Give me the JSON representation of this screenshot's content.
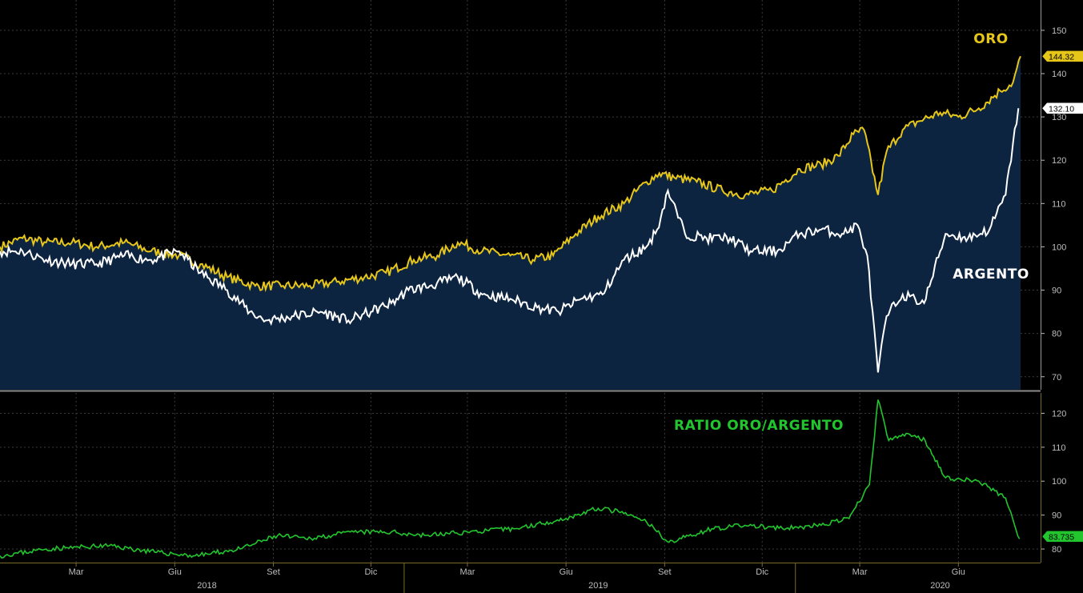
{
  "chart_data": [
    {
      "type": "area",
      "panel": "top",
      "ylim": [
        67,
        157
      ],
      "yticks": [
        70,
        80,
        90,
        100,
        110,
        120,
        130,
        140,
        150
      ],
      "grid": true,
      "x_range": [
        "2017-12-20",
        "2020-07-29"
      ],
      "series": [
        {
          "name": "ORO",
          "color": "#e6c619",
          "last_value_label": "144.32",
          "points": [
            [
              "2017-12-20",
              100
            ],
            [
              "2018-01-10",
              102
            ],
            [
              "2018-02-01",
              101
            ],
            [
              "2018-02-25",
              101
            ],
            [
              "2018-03-20",
              100
            ],
            [
              "2018-04-15",
              101
            ],
            [
              "2018-05-10",
              99
            ],
            [
              "2018-06-05",
              98
            ],
            [
              "2018-06-25",
              96
            ],
            [
              "2018-07-20",
              93
            ],
            [
              "2018-08-15",
              91
            ],
            [
              "2018-09-10",
              91
            ],
            [
              "2018-10-05",
              91
            ],
            [
              "2018-11-01",
              92
            ],
            [
              "2018-11-25",
              93
            ],
            [
              "2018-12-15",
              94
            ],
            [
              "2019-01-10",
              97
            ],
            [
              "2019-02-01",
              98
            ],
            [
              "2019-02-20",
              101
            ],
            [
              "2019-03-15",
              99
            ],
            [
              "2019-04-10",
              98
            ],
            [
              "2019-05-01",
              97
            ],
            [
              "2019-05-20",
              98
            ],
            [
              "2019-06-10",
              103
            ],
            [
              "2019-07-01",
              107
            ],
            [
              "2019-07-25",
              110
            ],
            [
              "2019-08-15",
              115
            ],
            [
              "2019-08-27",
              117
            ],
            [
              "2019-09-10",
              116
            ],
            [
              "2019-10-01",
              115
            ],
            [
              "2019-10-25",
              113
            ],
            [
              "2019-11-15",
              112
            ],
            [
              "2019-12-10",
              113
            ],
            [
              "2020-01-05",
              118
            ],
            [
              "2020-01-25",
              119
            ],
            [
              "2020-02-10",
              121
            ],
            [
              "2020-02-24",
              126
            ],
            [
              "2020-03-05",
              127
            ],
            [
              "2020-03-18",
              112
            ],
            [
              "2020-03-26",
              122
            ],
            [
              "2020-04-10",
              127
            ],
            [
              "2020-04-25",
              129
            ],
            [
              "2020-05-15",
              131
            ],
            [
              "2020-06-01",
              130
            ],
            [
              "2020-06-20",
              132
            ],
            [
              "2020-07-10",
              136
            ],
            [
              "2020-07-22",
              138
            ],
            [
              "2020-07-29",
              144
            ]
          ]
        },
        {
          "name": "ARGENTO",
          "color": "#ffffff",
          "last_value_label": "132.10",
          "points": [
            [
              "2017-12-20",
              99
            ],
            [
              "2018-01-10",
              99
            ],
            [
              "2018-02-01",
              97
            ],
            [
              "2018-02-25",
              96
            ],
            [
              "2018-03-20",
              96
            ],
            [
              "2018-04-15",
              98
            ],
            [
              "2018-05-10",
              97
            ],
            [
              "2018-06-05",
              99
            ],
            [
              "2018-06-25",
              94
            ],
            [
              "2018-07-20",
              90
            ],
            [
              "2018-08-10",
              85
            ],
            [
              "2018-08-25",
              83
            ],
            [
              "2018-09-20",
              84
            ],
            [
              "2018-10-15",
              85
            ],
            [
              "2018-11-10",
              83
            ],
            [
              "2018-12-01",
              85
            ],
            [
              "2018-12-20",
              87
            ],
            [
              "2019-01-05",
              90
            ],
            [
              "2019-01-25",
              91
            ],
            [
              "2019-02-20",
              93
            ],
            [
              "2019-03-15",
              89
            ],
            [
              "2019-04-10",
              88
            ],
            [
              "2019-05-05",
              86
            ],
            [
              "2019-05-25",
              85
            ],
            [
              "2019-06-15",
              88
            ],
            [
              "2019-07-05",
              89
            ],
            [
              "2019-07-25",
              97
            ],
            [
              "2019-08-15",
              100
            ],
            [
              "2019-08-25",
              104
            ],
            [
              "2019-09-04",
              113
            ],
            [
              "2019-09-20",
              103
            ],
            [
              "2019-10-10",
              102
            ],
            [
              "2019-11-01",
              102
            ],
            [
              "2019-11-20",
              99
            ],
            [
              "2019-12-15",
              99
            ],
            [
              "2020-01-05",
              103
            ],
            [
              "2020-01-25",
              104
            ],
            [
              "2020-02-15",
              103
            ],
            [
              "2020-02-28",
              105
            ],
            [
              "2020-03-08",
              98
            ],
            [
              "2020-03-18",
              71
            ],
            [
              "2020-03-26",
              84
            ],
            [
              "2020-04-10",
              89
            ],
            [
              "2020-04-30",
              87
            ],
            [
              "2020-05-20",
              103
            ],
            [
              "2020-06-10",
              102
            ],
            [
              "2020-06-30",
              104
            ],
            [
              "2020-07-15",
              112
            ],
            [
              "2020-07-27",
              132
            ]
          ]
        }
      ]
    },
    {
      "type": "line",
      "panel": "bottom",
      "ylim": [
        76,
        126
      ],
      "yticks": [
        80,
        90,
        100,
        110,
        120
      ],
      "grid": true,
      "series": [
        {
          "name": "RATIO ORO/ARGENTO",
          "color": "#22c52e",
          "last_value_label": "83.735",
          "points": [
            [
              "2017-12-20",
              78
            ],
            [
              "2018-02-01",
              80
            ],
            [
              "2018-04-01",
              81
            ],
            [
              "2018-05-15",
              79
            ],
            [
              "2018-06-20",
              78
            ],
            [
              "2018-08-01",
              80
            ],
            [
              "2018-09-05",
              84
            ],
            [
              "2018-10-01",
              83
            ],
            [
              "2018-11-15",
              85
            ],
            [
              "2018-12-20",
              85
            ],
            [
              "2019-01-20",
              84
            ],
            [
              "2019-03-01",
              85
            ],
            [
              "2019-04-15",
              86
            ],
            [
              "2019-06-01",
              89
            ],
            [
              "2019-07-01",
              92
            ],
            [
              "2019-07-20",
              91
            ],
            [
              "2019-08-15",
              88
            ],
            [
              "2019-09-05",
              82
            ],
            [
              "2019-10-15",
              86
            ],
            [
              "2019-11-15",
              87
            ],
            [
              "2019-12-20",
              86
            ],
            [
              "2020-01-25",
              87
            ],
            [
              "2020-02-20",
              89
            ],
            [
              "2020-03-10",
              99
            ],
            [
              "2020-03-18",
              124
            ],
            [
              "2020-03-28",
              112
            ],
            [
              "2020-04-15",
              114
            ],
            [
              "2020-05-01",
              112
            ],
            [
              "2020-05-20",
              101
            ],
            [
              "2020-06-20",
              100
            ],
            [
              "2020-07-15",
              95
            ],
            [
              "2020-07-28",
              83
            ]
          ]
        }
      ]
    }
  ],
  "x_axis": {
    "month_labels": [
      {
        "label": "Mar",
        "date": "2018-03-01"
      },
      {
        "label": "Giu",
        "date": "2018-06-01"
      },
      {
        "label": "Set",
        "date": "2018-09-01"
      },
      {
        "label": "Dic",
        "date": "2018-12-01"
      },
      {
        "label": "Mar",
        "date": "2019-03-01"
      },
      {
        "label": "Giu",
        "date": "2019-06-01"
      },
      {
        "label": "Set",
        "date": "2019-09-01"
      },
      {
        "label": "Dic",
        "date": "2019-12-01"
      },
      {
        "label": "Mar",
        "date": "2020-03-01"
      },
      {
        "label": "Giu",
        "date": "2020-06-01"
      }
    ],
    "year_labels": [
      {
        "label": "2018",
        "date": "2018-07-01"
      },
      {
        "label": "2019",
        "date": "2019-07-01"
      },
      {
        "label": "2020",
        "date": "2020-05-15"
      }
    ],
    "year_separators": [
      "2019-01-01",
      "2020-01-01"
    ]
  },
  "colors": {
    "background": "#000000",
    "area_fill": "#0d2440",
    "grid": "#3a3a3a",
    "axis": "#7a6a2a"
  }
}
